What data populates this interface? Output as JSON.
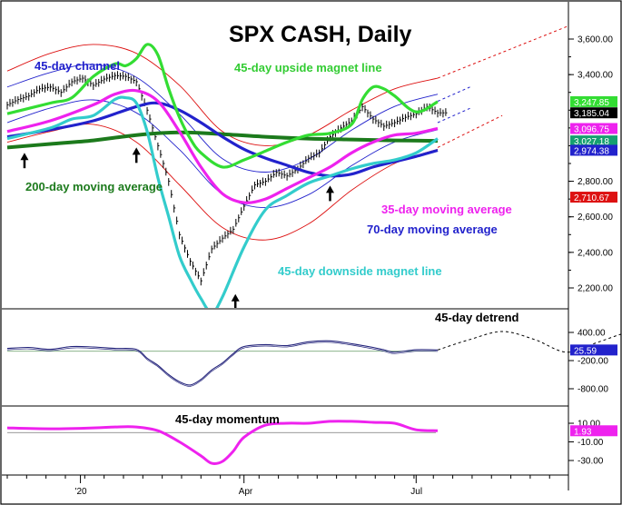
{
  "chart_data": {
    "type": "line",
    "title": "SPX CASH, Daily",
    "x_tick_labels": [
      "'20",
      "Apr",
      "Jul"
    ],
    "price_panel": {
      "ylim": [
        2100,
        3700
      ],
      "y_ticks": [
        {
          "value": 3600,
          "label": "3,600.00"
        },
        {
          "value": 3400,
          "label": "3,400.00"
        },
        {
          "value": 2800,
          "label": "2,800.00"
        },
        {
          "value": 2600,
          "label": "2,600.00"
        },
        {
          "value": 2400,
          "label": "2,400.00"
        },
        {
          "value": 2200,
          "label": "2,200.00"
        }
      ],
      "value_tags": [
        {
          "value": 3247.85,
          "label": "3,247.85",
          "color": "#33dd33"
        },
        {
          "value": 3185.04,
          "label": "3,185.04",
          "color": "#000000"
        },
        {
          "value": 3096.75,
          "label": "3,096.75",
          "color": "#ee22ee"
        },
        {
          "value": 3027.18,
          "label": "3,027.18",
          "color": "#16a070"
        },
        {
          "value": 2974.38,
          "label": "2,974.38",
          "color": "#2222cc"
        },
        {
          "value": 2710.67,
          "label": "2,710.67",
          "color": "#dd1111"
        }
      ],
      "annotations": {
        "channel": "45-day channel",
        "upside": "45-day upside magnet line",
        "ma200": "200-day moving average",
        "ma35": "35-day moving average",
        "ma70": "70-day moving average",
        "downside": "45-day downside magnet line"
      },
      "series": [
        {
          "key": "price",
          "color": "#000000",
          "x": [
            0,
            5,
            10,
            15,
            20,
            25,
            30,
            35,
            40,
            45,
            50,
            55,
            60,
            65,
            70,
            75,
            80,
            85,
            90,
            95,
            100,
            105,
            110,
            115,
            120,
            125,
            130,
            135,
            140,
            145,
            150,
            155,
            160,
            165,
            170,
            175,
            180,
            185,
            190,
            195,
            200
          ],
          "values": [
            3230,
            3260,
            3280,
            3320,
            3330,
            3300,
            3360,
            3380,
            3340,
            3375,
            3395,
            3390,
            3360,
            3200,
            3000,
            2800,
            2500,
            2350,
            2240,
            2420,
            2480,
            2530,
            2660,
            2780,
            2800,
            2850,
            2830,
            2870,
            2930,
            2960,
            3050,
            3100,
            3140,
            3220,
            3150,
            3110,
            3130,
            3160,
            3180,
            3220,
            3185
          ]
        },
        {
          "key": "ma200",
          "color": "#1c7a1c",
          "x": [
            0,
            20,
            40,
            60,
            80,
            100,
            120,
            140,
            160,
            180,
            200
          ],
          "values": [
            2990,
            3010,
            3030,
            3060,
            3075,
            3065,
            3050,
            3040,
            3035,
            3030,
            3027
          ]
        },
        {
          "key": "ma70",
          "color": "#2222cc",
          "x": [
            0,
            20,
            40,
            60,
            70,
            80,
            90,
            100,
            110,
            120,
            130,
            140,
            150,
            160,
            170,
            180,
            190,
            200
          ],
          "values": [
            3050,
            3090,
            3140,
            3220,
            3240,
            3200,
            3130,
            3050,
            2980,
            2930,
            2890,
            2850,
            2830,
            2840,
            2880,
            2910,
            2940,
            2974
          ]
        },
        {
          "key": "ma35",
          "color": "#ee22ee",
          "x": [
            0,
            20,
            40,
            50,
            60,
            70,
            80,
            90,
            100,
            110,
            120,
            130,
            140,
            150,
            160,
            170,
            180,
            190,
            200
          ],
          "values": [
            3080,
            3140,
            3230,
            3290,
            3310,
            3250,
            3080,
            2880,
            2730,
            2680,
            2700,
            2760,
            2820,
            2880,
            2960,
            3020,
            3060,
            3070,
            3097
          ]
        },
        {
          "key": "upside_magnet",
          "color": "#33dd33",
          "x": [
            0,
            20,
            30,
            40,
            50,
            55,
            60,
            65,
            70,
            75,
            80,
            85,
            90,
            100,
            110,
            120,
            130,
            140,
            150,
            160,
            165,
            170,
            175,
            180,
            190,
            200
          ],
          "values": [
            3180,
            3240,
            3270,
            3390,
            3460,
            3450,
            3490,
            3570,
            3510,
            3320,
            3160,
            3040,
            2960,
            2880,
            2920,
            2970,
            3020,
            3060,
            3070,
            3120,
            3260,
            3330,
            3320,
            3280,
            3190,
            3248
          ]
        },
        {
          "key": "downside_magnet",
          "color": "#33cccc",
          "x": [
            0,
            20,
            30,
            40,
            50,
            55,
            60,
            65,
            70,
            75,
            80,
            85,
            90,
            95,
            100,
            110,
            120,
            130,
            140,
            150,
            160,
            170,
            180,
            190,
            200
          ],
          "values": [
            3040,
            3100,
            3150,
            3170,
            3260,
            3270,
            3240,
            3080,
            2820,
            2600,
            2380,
            2250,
            2140,
            2060,
            2150,
            2430,
            2640,
            2720,
            2790,
            2830,
            2870,
            2900,
            2920,
            2960,
            3040
          ]
        }
      ],
      "channel_upper": {
        "x": [
          0,
          20,
          40,
          60,
          80,
          100,
          120,
          140,
          160,
          180,
          200
        ],
        "values": [
          3420,
          3520,
          3570,
          3520,
          3340,
          3080,
          3000,
          3060,
          3200,
          3320,
          3380
        ]
      },
      "channel_lower": {
        "x": [
          0,
          20,
          40,
          60,
          80,
          100,
          120,
          140,
          160,
          180,
          200
        ],
        "values": [
          3020,
          3080,
          3120,
          3020,
          2780,
          2540,
          2470,
          2560,
          2750,
          2900,
          2980
        ]
      },
      "projections": [
        {
          "color": "#dd1111",
          "x": [
            200,
            260
          ],
          "values": [
            3380,
            3670
          ]
        },
        {
          "color": "#2222cc",
          "x": [
            200,
            215
          ],
          "values": [
            3250,
            3330
          ]
        },
        {
          "color": "#2222cc",
          "x": [
            200,
            215
          ],
          "values": [
            3130,
            3210
          ]
        },
        {
          "color": "#dd1111",
          "x": [
            200,
            230
          ],
          "values": [
            2990,
            3170
          ]
        }
      ],
      "arrows_x": [
        8,
        60,
        150,
        106
      ]
    },
    "detrend_panel": {
      "label": "45-day detrend",
      "ylim": [
        -900,
        550
      ],
      "y_ticks": [
        {
          "value": 400,
          "label": "400.00"
        },
        {
          "value": -200,
          "label": "-200.00"
        },
        {
          "value": -800,
          "label": "-800.00"
        }
      ],
      "value_tag": {
        "value": 25.59,
        "label": "25.59",
        "color": "#2222cc"
      },
      "series": {
        "x": [
          0,
          10,
          20,
          30,
          40,
          50,
          60,
          65,
          70,
          75,
          80,
          85,
          90,
          95,
          100,
          105,
          110,
          120,
          130,
          140,
          150,
          160,
          170,
          175,
          180,
          190,
          200
        ],
        "values": [
          60,
          80,
          40,
          100,
          90,
          60,
          40,
          -150,
          -300,
          -500,
          -650,
          -720,
          -600,
          -400,
          -250,
          -50,
          100,
          140,
          120,
          200,
          220,
          160,
          80,
          30,
          -20,
          30,
          26
        ]
      },
      "projection": {
        "x": [
          200,
          215,
          230,
          245,
          260,
          275,
          290,
          305
        ],
        "values": [
          26,
          250,
          420,
          250,
          -20,
          200,
          420,
          450
        ]
      }
    },
    "momentum_panel": {
      "label": "45-day momentum",
      "ylim": [
        -38,
        18
      ],
      "y_ticks": [
        {
          "value": 10,
          "label": "10.00"
        },
        {
          "value": -10,
          "label": "-10.00"
        },
        {
          "value": -30,
          "label": "-30.00"
        }
      ],
      "value_tag": {
        "value": 1.93,
        "label": "1.93",
        "color": "#ee22ee"
      },
      "series": {
        "x": [
          0,
          20,
          40,
          50,
          60,
          70,
          80,
          90,
          95,
          100,
          105,
          110,
          120,
          130,
          140,
          150,
          160,
          170,
          180,
          190,
          200
        ],
        "values": [
          5,
          4,
          5,
          6,
          6,
          2,
          -10,
          -25,
          -33,
          -31,
          -20,
          -5,
          8,
          10,
          10,
          12,
          12,
          11,
          10,
          3,
          2
        ]
      }
    }
  }
}
